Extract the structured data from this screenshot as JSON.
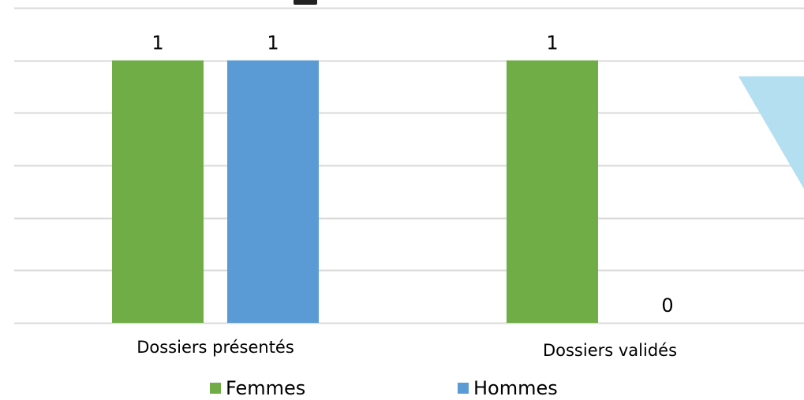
{
  "chart_data": {
    "type": "bar",
    "categories": [
      "Dossiers présentés",
      "Dossiers validés"
    ],
    "series": [
      {
        "name": "Femmes",
        "values": [
          1,
          1
        ],
        "color": "#70AD47"
      },
      {
        "name": "Hommes",
        "values": [
          1,
          0
        ],
        "color": "#5B9BD5"
      }
    ],
    "data_labels": [
      [
        "1",
        "1"
      ],
      [
        "1",
        "0"
      ]
    ],
    "ylim": [
      0,
      1.2
    ],
    "gridlines": true,
    "legend_position": "bottom",
    "decoration_color": "#B4DFF1"
  }
}
